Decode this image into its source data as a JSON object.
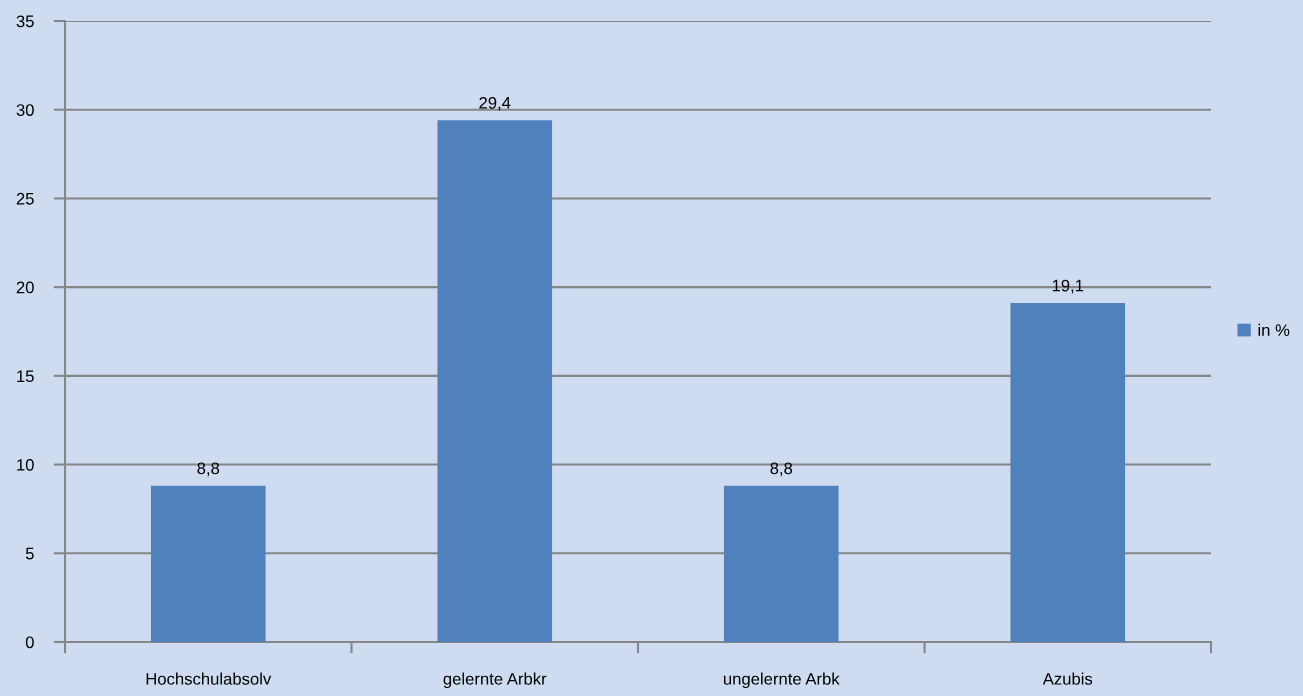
{
  "chart_data": {
    "type": "bar",
    "categories": [
      "Hochschulabsolv",
      "gelernte Arbkr",
      "ungelernte Arbk",
      "Azubis"
    ],
    "series": [
      {
        "name": "in %",
        "color": "#4f81bd",
        "values": [
          8.8,
          29.4,
          8.8,
          19.1
        ],
        "value_labels": [
          "8,8",
          "29,4",
          "8,8",
          "19,1"
        ]
      }
    ],
    "ylim": [
      0,
      35
    ],
    "yticks": [
      0,
      5,
      10,
      15,
      20,
      25,
      30,
      35
    ],
    "grid": "y",
    "legend": "right"
  }
}
